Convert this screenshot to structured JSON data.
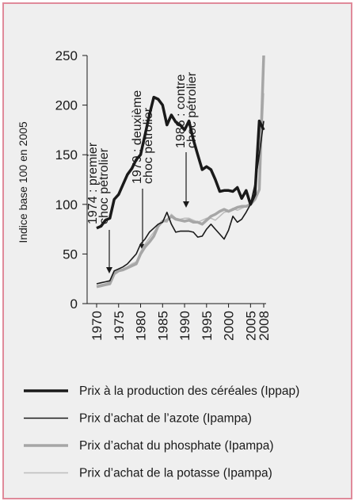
{
  "chart_data": {
    "type": "line",
    "ylabel": "Indice base 100 en 2005",
    "x": [
      1970,
      1971,
      1972,
      1973,
      1974,
      1975,
      1976,
      1977,
      1978,
      1979,
      1980,
      1981,
      1982,
      1983,
      1984,
      1985,
      1986,
      1987,
      1988,
      1989,
      1990,
      1991,
      1992,
      1993,
      1994,
      1995,
      1996,
      1997,
      1998,
      1999,
      2000,
      2001,
      2002,
      2003,
      2004,
      2005,
      2006,
      2007,
      2008
    ],
    "xlim": [
      1970,
      2008
    ],
    "xticks": [
      1970,
      1975,
      1980,
      1985,
      1990,
      1995,
      2000,
      2005,
      2008
    ],
    "ylim": [
      0,
      250
    ],
    "yticks": [
      0,
      50,
      100,
      150,
      200,
      250
    ],
    "annotations": [
      [
        "1974 : premier",
        "choc pétrolier"
      ],
      [
        "1979 : deuxième",
        "choc pétrolier"
      ],
      [
        "1986 : contre",
        "choc pétrolier"
      ]
    ],
    "series": [
      {
        "name": "Prix à la production des céréales (Ippap)",
        "color": "#1a1a1a",
        "line_width": 3.5,
        "values": [
          76,
          78,
          84,
          86,
          105,
          110,
          120,
          130,
          136,
          145,
          150,
          170,
          190,
          208,
          206,
          200,
          180,
          190,
          183,
          180,
          175,
          184,
          165,
          150,
          135,
          138,
          135,
          125,
          113,
          114,
          114,
          113,
          117,
          106,
          114,
          100,
          110,
          184,
          175
        ]
      },
      {
        "name": "Prix d’achat de l’azote (Ipampa)",
        "color": "#1a1a1a",
        "line_width": 1.6,
        "values": [
          20,
          21,
          22,
          23,
          33,
          35,
          37,
          40,
          45,
          50,
          60,
          65,
          72,
          76,
          80,
          82,
          92,
          80,
          72,
          73,
          73,
          73,
          72,
          67,
          68,
          75,
          80,
          75,
          70,
          65,
          74,
          88,
          82,
          85,
          92,
          100,
          120,
          150,
          184
        ]
      },
      {
        "name": "Prix d’achat du phosphate (Ipampa)",
        "color": "#a6a6a6",
        "line_width": 3.5,
        "values": [
          17,
          18,
          19,
          20,
          30,
          33,
          34,
          36,
          38,
          40,
          50,
          57,
          62,
          68,
          78,
          83,
          84,
          88,
          85,
          84,
          83,
          84,
          82,
          82,
          80,
          84,
          88,
          90,
          93,
          95,
          93,
          95,
          97,
          98,
          98,
          100,
          105,
          115,
          250
        ]
      },
      {
        "name": "Prix d’achat de la potasse (Ipampa)",
        "color": "#bdbdbd",
        "line_width": 1.6,
        "values": [
          18,
          19,
          20,
          22,
          32,
          34,
          35,
          37,
          40,
          42,
          52,
          60,
          66,
          72,
          78,
          83,
          82,
          90,
          86,
          85,
          86,
          86,
          84,
          82,
          84,
          86,
          86,
          84,
          88,
          92,
          93,
          96,
          94,
          96,
          98,
          100,
          104,
          115,
          212
        ]
      }
    ]
  }
}
